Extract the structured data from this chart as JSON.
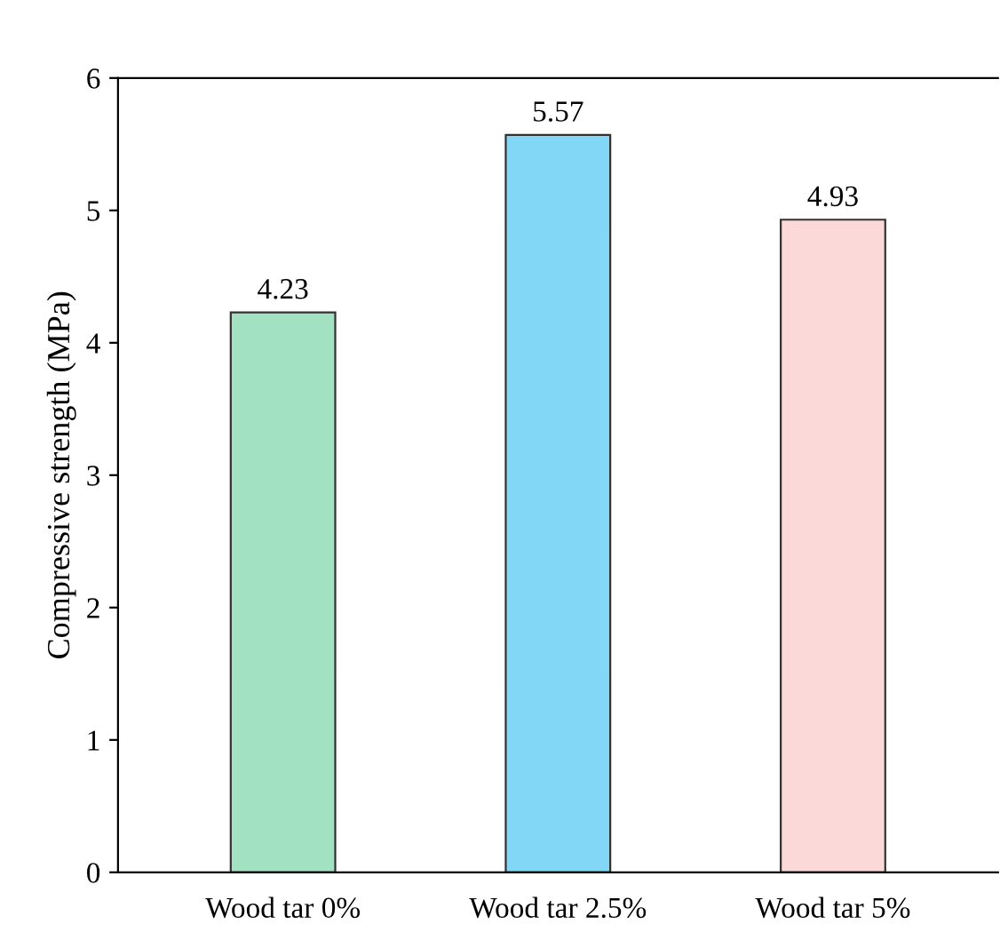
{
  "chart_data": {
    "type": "bar",
    "ylabel": "Compressive strength (MPa)",
    "categories": [
      "Wood tar 0%",
      "Wood tar 2.5%",
      "Wood tar 5%"
    ],
    "values": [
      4.23,
      5.57,
      4.93
    ],
    "colors": [
      "#a2e2c2",
      "#82d6f6",
      "#fcd9d9"
    ],
    "ylim": [
      0,
      6
    ],
    "yticks": [
      0,
      1,
      2,
      3,
      4,
      5,
      6
    ],
    "grid": false,
    "data_labels": true
  }
}
